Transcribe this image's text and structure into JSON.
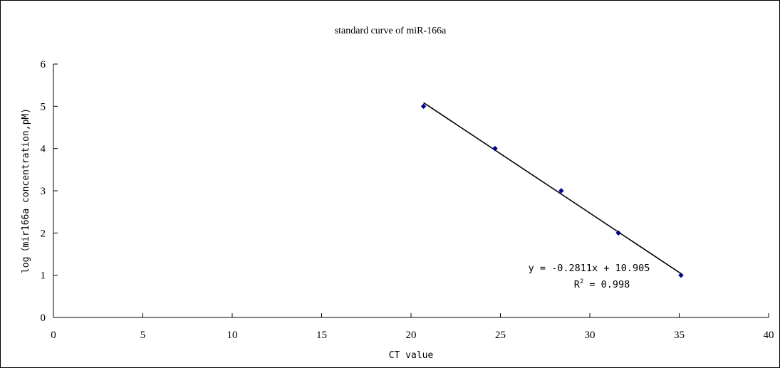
{
  "chart_data": {
    "type": "scatter",
    "title": "standard curve of miR-166a",
    "xlabel": "CT value",
    "ylabel": "log（mir166a concentration,pM)",
    "xlim": [
      0,
      40
    ],
    "ylim": [
      0,
      6
    ],
    "x_ticks": [
      0,
      5,
      10,
      15,
      20,
      25,
      30,
      35,
      40
    ],
    "y_ticks": [
      0,
      1,
      2,
      3,
      4,
      5,
      6
    ],
    "grid": false,
    "legend": "none",
    "series": [
      {
        "x": [
          20.7,
          24.7,
          28.4,
          31.6,
          35.1
        ],
        "y": [
          5,
          4,
          3,
          2,
          1
        ],
        "color": "#00008B",
        "marker": "diamond"
      }
    ],
    "trendline": {
      "type": "linear",
      "slope": -0.2811,
      "intercept": 10.905,
      "x_range": [
        20.7,
        35.1
      ],
      "color": "#000000",
      "equation_text": "y = -0.2811x + 10.905",
      "r2_prefix": "R",
      "r2_superscript": "2",
      "r2_suffix": " = 0.998"
    }
  }
}
